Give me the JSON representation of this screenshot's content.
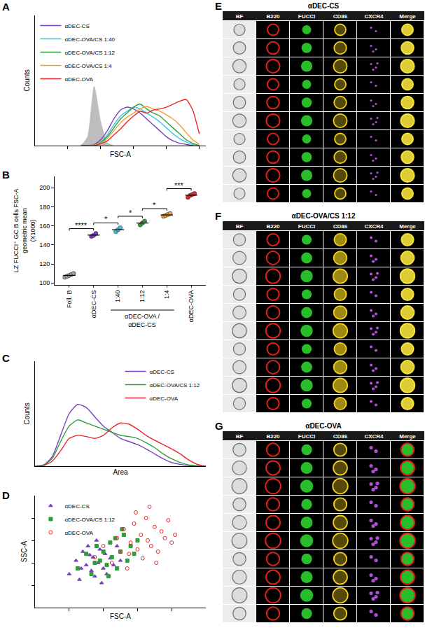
{
  "chart_data": [
    {
      "panel": "A",
      "type": "line",
      "x_label": "FSC-A",
      "y_label": "Counts",
      "x": [
        28,
        32,
        36,
        40,
        44,
        48,
        52,
        56,
        60,
        64,
        68,
        72,
        76,
        80,
        84,
        88,
        92,
        96,
        100
      ],
      "xlim": [
        0,
        104
      ],
      "xticks": [
        20,
        40,
        60,
        80,
        100
      ],
      "ylim": [
        0,
        220
      ],
      "tick_labels": false,
      "legend": "top-left",
      "series": [
        {
          "type": "area",
          "color": "#bdbdbd",
          "values": [
            0,
            15,
            100,
            40,
            5,
            0,
            0,
            0,
            0,
            0,
            0,
            0,
            0,
            0,
            0,
            0,
            0,
            0,
            0
          ]
        },
        {
          "name": "αDEC-CS",
          "type": "line",
          "color": "#7b3fc4",
          "values": [
            0,
            0,
            2,
            10,
            25,
            45,
            60,
            65,
            62,
            55,
            45,
            35,
            25,
            15,
            8,
            4,
            2,
            0,
            0
          ]
        },
        {
          "name": "αDEC-OVA/CS 1:40",
          "type": "line",
          "color": "#35c6e6",
          "values": [
            0,
            0,
            1,
            6,
            18,
            35,
            50,
            58,
            65,
            62,
            55,
            48,
            40,
            30,
            20,
            12,
            6,
            2,
            0
          ]
        },
        {
          "name": "αDEC-OVA/CS 1:12",
          "type": "line",
          "color": "#2e9e3a",
          "values": [
            0,
            0,
            1,
            5,
            15,
            30,
            45,
            55,
            65,
            70,
            62,
            55,
            50,
            40,
            30,
            20,
            10,
            4,
            0
          ]
        },
        {
          "name": "αDEC-OVA/CS 1:4",
          "type": "line",
          "color": "#f0a030",
          "values": [
            0,
            0,
            1,
            4,
            12,
            25,
            38,
            48,
            55,
            62,
            66,
            62,
            58,
            52,
            45,
            35,
            22,
            10,
            2
          ]
        },
        {
          "name": "αDEC-OVA",
          "type": "line",
          "color": "#e8262a",
          "values": [
            0,
            0,
            0,
            3,
            8,
            18,
            28,
            40,
            50,
            58,
            55,
            60,
            62,
            65,
            70,
            75,
            78,
            60,
            20
          ]
        }
      ]
    },
    {
      "panel": "B",
      "type": "dot",
      "marker": "circle",
      "y_label": [
        "LZ FUCCI⁺ GC B cells FSC-A",
        "geometric mean",
        "(X1000)"
      ],
      "categories": [
        "Foll. B",
        "αDEC-CS",
        "1:40",
        "1:12",
        "1:4",
        "αDEC-OVA"
      ],
      "colors": [
        "#9e9e9e",
        "#7b3fc4",
        "#35c6e6",
        "#2e9e3a",
        "#f0a030",
        "#e8262a"
      ],
      "values": [
        [
          106,
          107,
          108,
          109,
          110
        ],
        [
          149,
          150,
          152
        ],
        [
          154,
          156,
          158
        ],
        [
          161,
          163,
          165
        ],
        [
          170,
          171,
          172,
          173
        ],
        [
          190,
          192,
          193,
          194
        ]
      ],
      "ylim": [
        98,
        212
      ],
      "yticks": [
        100,
        120,
        140,
        160,
        180,
        200
      ],
      "group_label": {
        "lines": [
          "αDEC-OVA /",
          "αDEC-CS"
        ],
        "categories": [
          "1:40",
          "1:12",
          "1:4"
        ]
      },
      "annotations": [
        {
          "text": "****",
          "between": [
            "Foll. B",
            "αDEC-CS"
          ]
        },
        {
          "text": "*",
          "between": [
            "αDEC-CS",
            "1:40"
          ]
        },
        {
          "text": "*",
          "between": [
            "1:40",
            "1:12"
          ]
        },
        {
          "text": "*",
          "between": [
            "1:12",
            "1:4"
          ]
        },
        {
          "text": "***",
          "between": [
            "1:4",
            "αDEC-OVA"
          ]
        }
      ]
    },
    {
      "panel": "C",
      "type": "line",
      "x_label": "Area",
      "y_label": "Counts",
      "x": [
        0,
        5,
        10,
        15,
        20,
        25,
        30,
        35,
        40,
        45,
        50,
        55,
        60,
        65,
        70,
        75,
        80,
        85,
        90,
        95,
        100
      ],
      "xlim": [
        0,
        100
      ],
      "ylim": [
        0,
        170
      ],
      "tick_labels": false,
      "legend": "top-right",
      "series": [
        {
          "name": "αDEC-CS",
          "type": "line",
          "color": "#7b3fc4",
          "values": [
            0,
            2,
            15,
            50,
            85,
            100,
            95,
            80,
            65,
            55,
            45,
            40,
            35,
            28,
            20,
            12,
            6,
            3,
            1,
            0,
            0
          ]
        },
        {
          "name": "αDEC-OVA/CS 1:12",
          "type": "line",
          "color": "#2e9e3a",
          "values": [
            0,
            2,
            12,
            40,
            65,
            75,
            70,
            65,
            60,
            55,
            50,
            48,
            45,
            38,
            30,
            20,
            12,
            6,
            2,
            1,
            0
          ]
        },
        {
          "name": "αDEC-OVA",
          "type": "line",
          "color": "#e8262a",
          "values": [
            0,
            1,
            8,
            25,
            45,
            50,
            48,
            45,
            50,
            62,
            70,
            68,
            60,
            50,
            42,
            35,
            28,
            20,
            10,
            3,
            0
          ]
        }
      ]
    },
    {
      "panel": "D",
      "type": "scatter",
      "x_label": "FSC-A",
      "y_label": "SSC-A",
      "xlim": [
        0,
        100
      ],
      "ylim": [
        0,
        100
      ],
      "xticks": [
        20,
        40,
        60,
        80
      ],
      "yticks": [
        20,
        40,
        60,
        80
      ],
      "tick_labels": false,
      "legend": "top-left",
      "series": [
        {
          "name": "αDEC-CS",
          "color": "#7b3fc4",
          "marker": "triangle-up",
          "x": [
            20,
            24,
            26,
            28,
            30,
            31,
            33,
            34,
            35,
            36,
            37,
            38,
            40,
            41,
            42,
            44,
            46,
            48,
            50,
            27,
            32,
            39
          ],
          "y": [
            30,
            42,
            25,
            50,
            38,
            55,
            33,
            45,
            28,
            60,
            40,
            52,
            35,
            48,
            30,
            44,
            38,
            55,
            42,
            35,
            47,
            22
          ]
        },
        {
          "name": "αDEC-OVA/CS 1:12",
          "color": "#2e9e3a",
          "marker": "square",
          "x": [
            25,
            30,
            33,
            36,
            38,
            40,
            42,
            44,
            45,
            47,
            48,
            50,
            52,
            54,
            56,
            58,
            60,
            35,
            43,
            51
          ],
          "y": [
            35,
            48,
            30,
            55,
            42,
            50,
            38,
            58,
            45,
            62,
            35,
            50,
            65,
            42,
            55,
            48,
            60,
            40,
            28,
            70
          ]
        },
        {
          "name": "αDEC-OVA",
          "color": "#e8262a",
          "marker": "circle-open",
          "x": [
            35,
            40,
            45,
            48,
            50,
            52,
            55,
            56,
            58,
            60,
            62,
            63,
            65,
            66,
            68,
            70,
            72,
            74,
            76,
            78,
            80,
            54,
            59,
            67,
            71,
            82
          ],
          "y": [
            45,
            55,
            40,
            62,
            50,
            70,
            48,
            58,
            75,
            52,
            65,
            44,
            80,
            60,
            55,
            72,
            50,
            68,
            62,
            78,
            58,
            35,
            85,
            90,
            40,
            65
          ]
        }
      ]
    }
  ],
  "image_panels": [
    {
      "panel": "E",
      "title": "αDEC-CS",
      "rows": 10,
      "channels": [
        {
          "name": "BF",
          "color": "#cfcfcf"
        },
        {
          "name": "B220",
          "color": "#e0201a"
        },
        {
          "name": "FUCCI",
          "color": "#2fd12f"
        },
        {
          "name": "CD86",
          "color": "#f2d21b"
        },
        {
          "name": "CXCR4",
          "color": "#b04fd6"
        },
        {
          "name": "Merge",
          "color": "#f5e23a"
        }
      ]
    },
    {
      "panel": "F",
      "title": "αDEC-OVA/CS 1:12",
      "rows": 10,
      "channels": [
        {
          "name": "BF",
          "color": "#cfcfcf"
        },
        {
          "name": "B220",
          "color": "#e0201a"
        },
        {
          "name": "FUCCI",
          "color": "#2fd12f"
        },
        {
          "name": "CD86",
          "color": "#f2d21b"
        },
        {
          "name": "CXCR4",
          "color": "#b04fd6"
        },
        {
          "name": "Merge",
          "color": "#f5e23a"
        }
      ]
    },
    {
      "panel": "G",
      "title": "αDEC-OVA",
      "rows": 10,
      "channels": [
        {
          "name": "BF",
          "color": "#cfcfcf"
        },
        {
          "name": "B220",
          "color": "#e0201a"
        },
        {
          "name": "FUCCI",
          "color": "#2fd12f"
        },
        {
          "name": "CD86",
          "color": "#f2d21b"
        },
        {
          "name": "CXCR4",
          "color": "#b04fd6"
        },
        {
          "name": "Merge",
          "color": "#f5e23a"
        }
      ]
    }
  ]
}
